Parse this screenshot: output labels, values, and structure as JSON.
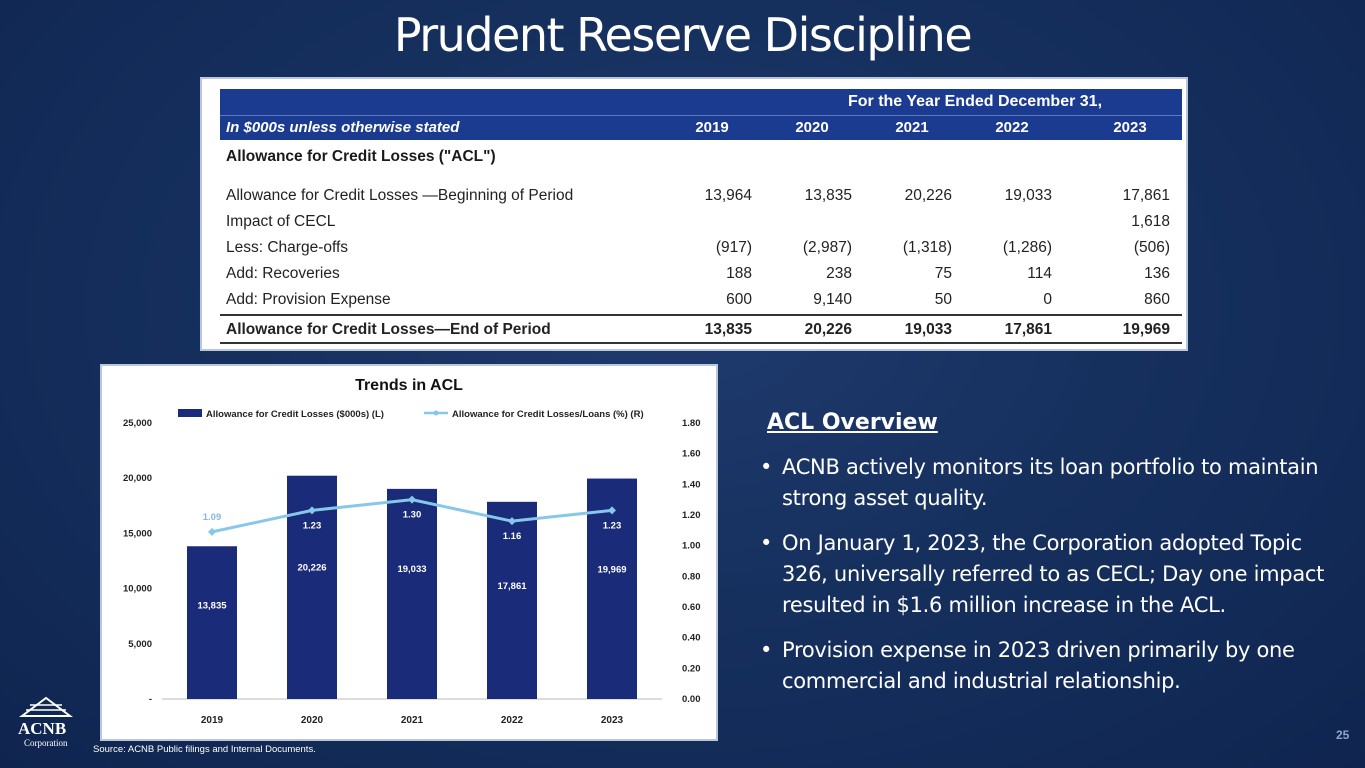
{
  "title": "Prudent Reserve Discipline",
  "table": {
    "period_header": "For the Year Ended December 31,",
    "unit_label": "In $000s unless otherwise stated",
    "years": [
      "2019",
      "2020",
      "2021",
      "2022",
      "2023"
    ],
    "section_title": "Allowance for Credit Losses (\"ACL\")",
    "rows": [
      {
        "label": "Allowance for Credit Losses —Beginning of Period",
        "values": [
          "13,964",
          "13,835",
          "20,226",
          "19,033",
          "17,861"
        ]
      },
      {
        "label": "Impact of CECL",
        "values": [
          "",
          "",
          "",
          "",
          "1,618"
        ]
      },
      {
        "label": "Less: Charge-offs",
        "values": [
          "(917)",
          "(2,987)",
          "(1,318)",
          "(1,286)",
          "(506)"
        ]
      },
      {
        "label": "Add: Recoveries",
        "values": [
          "188",
          "238",
          "75",
          "114",
          "136"
        ]
      },
      {
        "label": "Add: Provision Expense",
        "values": [
          "600",
          "9,140",
          "50",
          "0",
          "860"
        ]
      }
    ],
    "total": {
      "label": "Allowance for Credit Losses—End of Period",
      "values": [
        "13,835",
        "20,226",
        "19,033",
        "17,861",
        "19,969"
      ]
    }
  },
  "chart_data": {
    "type": "bar",
    "title": "Trends in ACL",
    "categories": [
      "2019",
      "2020",
      "2021",
      "2022",
      "2023"
    ],
    "series": [
      {
        "name": "Allowance for Credit Losses ($000s) (L)",
        "type": "bar",
        "axis": "left",
        "values": [
          13835,
          20226,
          19033,
          17861,
          19969
        ],
        "labels": [
          "13,835",
          "20,226",
          "19,033",
          "17,861",
          "19,969"
        ],
        "color": "#1a2b7a"
      },
      {
        "name": "Allowance for Credit Losses/Loans (%) (R)",
        "type": "line",
        "axis": "right",
        "values": [
          1.09,
          1.23,
          1.3,
          1.16,
          1.23
        ],
        "labels": [
          "1.09",
          "1.23",
          "1.30",
          "1.16",
          "1.23"
        ],
        "color": "#87c8ea"
      }
    ],
    "left_axis": {
      "min": 0,
      "max": 25000,
      "ticks": [
        "-",
        "5,000",
        "10,000",
        "15,000",
        "20,000",
        "25,000"
      ]
    },
    "right_axis": {
      "min": 0,
      "max": 1.8,
      "ticks": [
        "0.00",
        "0.20",
        "0.40",
        "0.60",
        "0.80",
        "1.00",
        "1.20",
        "1.40",
        "1.60",
        "1.80"
      ]
    },
    "legend": "top",
    "grid": false
  },
  "overview": {
    "title": "ACL Overview",
    "bullets": [
      "ACNB actively monitors its loan portfolio to maintain strong asset quality.",
      "On January 1, 2023, the Corporation adopted Topic 326, universally referred to as CECL; Day one impact resulted in $1.6 million increase in the ACL.",
      "Provision expense in 2023 driven primarily by one commercial and industrial relationship."
    ]
  },
  "logo": {
    "name": "ACNB",
    "sub": "Corporation"
  },
  "source": "Source: ACNB Public filings and Internal Documents.",
  "page_number": "25",
  "colors": {
    "background": "#16305e",
    "table_header": "#1a3b8f",
    "bar": "#1a2b7a",
    "line": "#87c8ea"
  }
}
